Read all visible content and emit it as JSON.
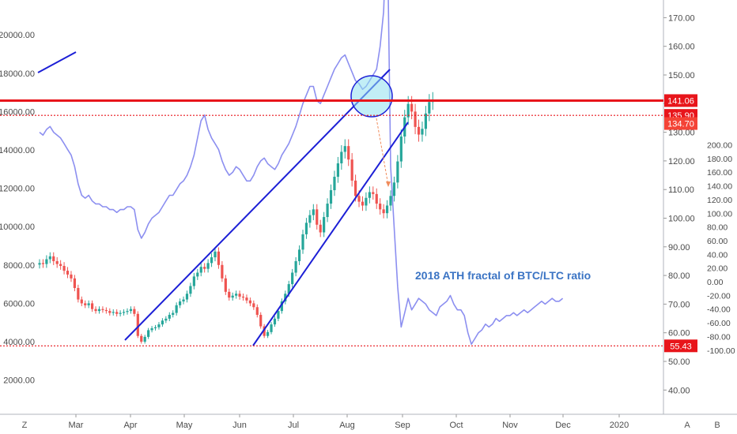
{
  "chart_data": {
    "type": "candlestick+line",
    "annotation": "2018 ATH fractal of BTC/LTC ratio",
    "x_axis": {
      "ticks": [
        "Mar",
        "Apr",
        "May",
        "Jun",
        "Jul",
        "Aug",
        "Sep",
        "Oct",
        "Nov",
        "Dec",
        "2020"
      ]
    },
    "left_axis": {
      "ticks": [
        2000,
        4000,
        6000,
        8000,
        10000,
        12000,
        14000,
        16000,
        18000,
        20000
      ],
      "labels": [
        "2000.00",
        "4000.00",
        "6000.00",
        "8000.00",
        "10000.00",
        "12000.00",
        "14000.00",
        "16000.00",
        "18000.00",
        "20000.00"
      ]
    },
    "right_axis": {
      "ticks": [
        40,
        50,
        60,
        70,
        80,
        90,
        100,
        110,
        120,
        130,
        140,
        150,
        160,
        170
      ],
      "labels": [
        "40.00",
        "50.00",
        "60.00",
        "70.00",
        "80.00",
        "90.00",
        "100.00",
        "110.00",
        "120.00",
        "130.00",
        "140.00",
        "150.00",
        "160.00",
        "170.00"
      ]
    },
    "overlay_axis": {
      "ticks": [
        -100,
        -80,
        -60,
        -40,
        -20,
        0,
        20,
        40,
        60,
        80,
        100,
        120,
        140,
        160,
        180,
        200
      ],
      "labels": [
        "-100.00",
        "-80.00",
        "-60.00",
        "-40.00",
        "-20.00",
        "0.00",
        "20.00",
        "40.00",
        "60.00",
        "80.00",
        "100.00",
        "120.00",
        "140.00",
        "160.00",
        "180.00",
        "200.00"
      ]
    },
    "horizontal_levels": [
      {
        "value": 141.06,
        "label": "141.06",
        "style": "solid",
        "color": "#e8151b"
      },
      {
        "value": 135.9,
        "label": "135.90",
        "style": "dotted",
        "color": "#e8151b"
      },
      {
        "value": 134.7,
        "label": "134.70",
        "style": "tag",
        "color": "#f44336"
      },
      {
        "value": 55.43,
        "label": "55.43",
        "style": "dotted",
        "color": "#e8151b"
      }
    ],
    "candles_btc_usd_2019": {
      "start": "2019-02-01",
      "interval_days": 2,
      "close": [
        8100,
        8050,
        8300,
        8450,
        8200,
        8050,
        7950,
        7700,
        7500,
        7300,
        6800,
        6200,
        6000,
        5900,
        6000,
        5700,
        5600,
        5700,
        5650,
        5600,
        5500,
        5550,
        5450,
        5500,
        5550,
        5600,
        5700,
        5450,
        4300,
        4000,
        4250,
        4600,
        4700,
        4750,
        4900,
        5100,
        5200,
        5400,
        5500,
        5900,
        6100,
        6200,
        6500,
        6900,
        7400,
        7600,
        7900,
        7800,
        8100,
        8400,
        8700,
        8000,
        7300,
        6600,
        6300,
        6400,
        6500,
        6350,
        6300,
        6150,
        6000,
        5800,
        5400,
        4800,
        4300,
        4500,
        4900,
        5200,
        5600,
        6100,
        6500,
        7000,
        7600,
        8200,
        8800,
        9600,
        10200,
        10600,
        10900,
        10100,
        9700,
        10500,
        11200,
        11900,
        12600,
        13300,
        13900,
        14200,
        13500,
        12400,
        11600,
        11300,
        11100,
        11500,
        11800,
        11700,
        11200,
        10900,
        10700,
        11100,
        11600,
        12300,
        13400,
        14700,
        15700,
        16400,
        16000,
        15200,
        14800,
        15100,
        15900,
        16500,
        16600
      ]
    },
    "btc_ltc_ratio_series": {
      "start": "2019-02-01",
      "interval_days": 2,
      "values": [
        130,
        129,
        131,
        132,
        130,
        129,
        128,
        126,
        124,
        122,
        118,
        112,
        108,
        107,
        108,
        106,
        105,
        105,
        104,
        104,
        103,
        103,
        102,
        103,
        103,
        104,
        104,
        103,
        96,
        93,
        95,
        98,
        100,
        101,
        102,
        104,
        106,
        108,
        108,
        110,
        112,
        113,
        115,
        118,
        122,
        128,
        134,
        136,
        131,
        128,
        126,
        124,
        120,
        117,
        115,
        116,
        118,
        117,
        115,
        113,
        113,
        115,
        118,
        120,
        121,
        119,
        118,
        117,
        119,
        122,
        124,
        126,
        129,
        132,
        136,
        140,
        143,
        146,
        146,
        141,
        140,
        143,
        146,
        149,
        152,
        154,
        156,
        157,
        154,
        151,
        148,
        147,
        145,
        146,
        148,
        150,
        152,
        160,
        172,
        205,
        118,
        97,
        76,
        62,
        67,
        72,
        68,
        70,
        72,
        71,
        70,
        68,
        67,
        66,
        69,
        70,
        71,
        73,
        70,
        68,
        68,
        66,
        60,
        56,
        58,
        60,
        61,
        63,
        62,
        63,
        65,
        64,
        65,
        66,
        66,
        67,
        66,
        67,
        68,
        67,
        68,
        69,
        70,
        71,
        70,
        71,
        72,
        71,
        71,
        72
      ]
    },
    "trend_channel": "ascending, Apr–Aug",
    "highlight_circle": "near 141.06 level, mid-Aug"
  },
  "ui": {
    "timezone_button": "Z",
    "auto_scale_button": "A",
    "right_corner_button": "B",
    "colors": {
      "candle_up": "#26a69a",
      "candle_down": "#ef5350",
      "overlay_line": "#8c8ff0",
      "channel": "#1c1fd6",
      "level": "#e8151b",
      "circle_fill": "#8fe0ef",
      "annotation": "#3b74c4"
    }
  }
}
